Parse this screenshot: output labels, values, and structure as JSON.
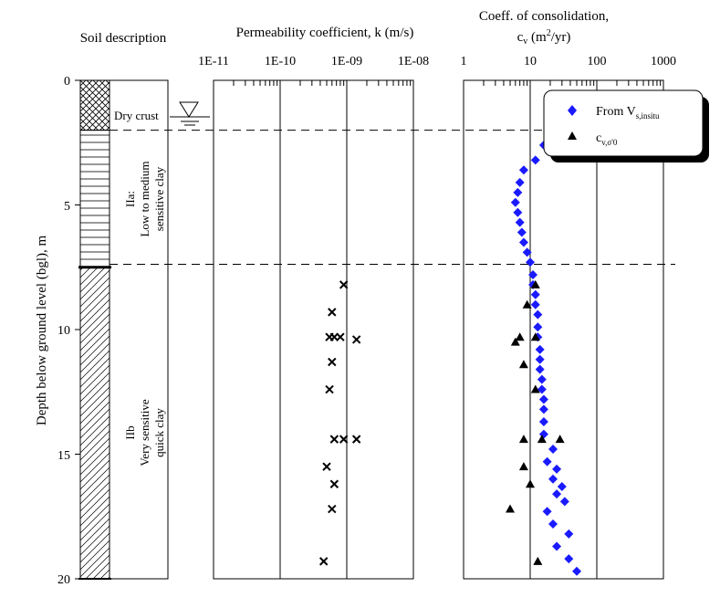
{
  "chart_data": [
    {
      "type": "profile",
      "panel": "soil_column",
      "title": "Soil description",
      "ylabel": "Depth below ground level (bgl), m",
      "ylim": [
        0,
        20
      ],
      "yticks": [
        "0",
        "5",
        "10",
        "15",
        "20"
      ],
      "layers": [
        {
          "name": "dry-crust",
          "label": "Dry crust",
          "top": 0,
          "bottom": 2.0,
          "pattern": "crosshatch"
        },
        {
          "name": "IIa",
          "label_lines": [
            "IIa:",
            "Low to medium",
            "sensitive clay"
          ],
          "top": 2.0,
          "bottom": 7.5,
          "pattern": "horizontal-lines"
        },
        {
          "name": "IIb",
          "label_lines": [
            "IIb",
            "Very sensitive",
            "quick clay"
          ],
          "top": 7.5,
          "bottom": 20,
          "pattern": "diagonal-hatch"
        }
      ],
      "groundwater_depth": 1.5
    },
    {
      "type": "scatter",
      "panel": "permeability",
      "title": "Permeability coefficient, k (m/s)",
      "xscale": "log",
      "xlim": [
        1e-11,
        1e-08
      ],
      "xticks": [
        "1E-11",
        "1E-10",
        "1E-09",
        "1E-08"
      ],
      "ylim": [
        0,
        20
      ],
      "series": [
        {
          "name": "k",
          "marker": "x",
          "points": [
            [
              9e-10,
              8.2
            ],
            [
              6e-10,
              9.3
            ],
            [
              5.5e-10,
              10.3
            ],
            [
              6.5e-10,
              10.3
            ],
            [
              8e-10,
              10.3
            ],
            [
              1.4e-09,
              10.4
            ],
            [
              6e-10,
              11.3
            ],
            [
              5.5e-10,
              12.4
            ],
            [
              6.5e-10,
              14.4
            ],
            [
              9e-10,
              14.4
            ],
            [
              1.4e-09,
              14.4
            ],
            [
              5e-10,
              15.5
            ],
            [
              6.5e-10,
              16.2
            ],
            [
              6e-10,
              17.2
            ],
            [
              4.5e-10,
              19.3
            ]
          ]
        }
      ]
    },
    {
      "type": "scatter",
      "panel": "consolidation",
      "title_line1": "Coeff. of consolidation,",
      "title_line2_base": "c",
      "title_line2_sub": "v",
      "title_line2_unit_a": " (m",
      "title_line2_sup": "2",
      "title_line2_unit_b": "/yr)",
      "xscale": "log",
      "xlim": [
        1,
        1000
      ],
      "xticks": [
        "1",
        "10",
        "100",
        "1000"
      ],
      "ylim": [
        0,
        20
      ],
      "legend_position": "top-right",
      "series": [
        {
          "name": "from_vs_insitu",
          "legend_text": "From  V",
          "legend_sub": "s,insitu",
          "marker": "diamond",
          "color": "#1a1aff",
          "points": [
            [
              16,
              2.6
            ],
            [
              12,
              3.2
            ],
            [
              8,
              3.6
            ],
            [
              7,
              4.1
            ],
            [
              6.5,
              4.5
            ],
            [
              6,
              4.9
            ],
            [
              6.5,
              5.3
            ],
            [
              7,
              5.7
            ],
            [
              7.5,
              6.1
            ],
            [
              8,
              6.5
            ],
            [
              9,
              6.9
            ],
            [
              10,
              7.3
            ],
            [
              11,
              7.8
            ],
            [
              11,
              8.2
            ],
            [
              12,
              8.6
            ],
            [
              12,
              9.0
            ],
            [
              13,
              9.4
            ],
            [
              13,
              9.9
            ],
            [
              13,
              10.3
            ],
            [
              14,
              10.8
            ],
            [
              14,
              11.2
            ],
            [
              14,
              11.6
            ],
            [
              15,
              12.0
            ],
            [
              15,
              12.4
            ],
            [
              16,
              12.8
            ],
            [
              16,
              13.2
            ],
            [
              16,
              13.7
            ],
            [
              16,
              14.2
            ],
            [
              22,
              14.8
            ],
            [
              18,
              15.3
            ],
            [
              25,
              15.6
            ],
            [
              22,
              16.0
            ],
            [
              30,
              16.3
            ],
            [
              25,
              16.6
            ],
            [
              33,
              16.9
            ],
            [
              18,
              17.3
            ],
            [
              22,
              17.8
            ],
            [
              38,
              18.2
            ],
            [
              25,
              18.7
            ],
            [
              38,
              19.2
            ],
            [
              50,
              19.7
            ]
          ]
        },
        {
          "name": "cv_sigma",
          "legend_text": "c",
          "legend_sub": "v,σ'0",
          "marker": "triangle",
          "color": "#000000",
          "points": [
            [
              12,
              8.2
            ],
            [
              9,
              9.0
            ],
            [
              7,
              10.3
            ],
            [
              12,
              10.3
            ],
            [
              6,
              10.5
            ],
            [
              8,
              11.4
            ],
            [
              12,
              12.4
            ],
            [
              8,
              14.4
            ],
            [
              15,
              14.4
            ],
            [
              28,
              14.4
            ],
            [
              8,
              15.5
            ],
            [
              10,
              16.2
            ],
            [
              5,
              17.2
            ],
            [
              13,
              19.3
            ]
          ]
        }
      ]
    }
  ]
}
